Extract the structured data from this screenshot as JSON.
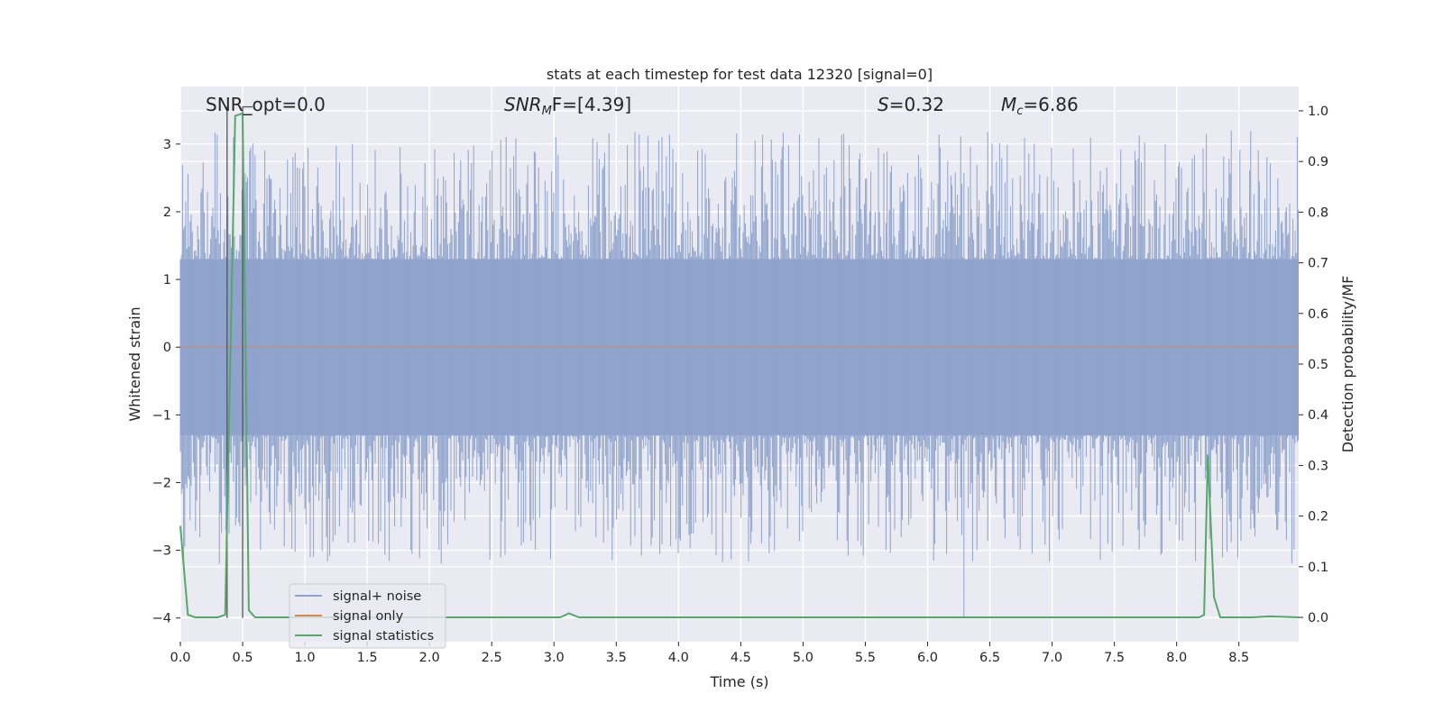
{
  "chart_data": {
    "type": "line",
    "title": "stats at each timestep for test data 12320 [signal=0]",
    "xlabel": "Time (s)",
    "ylabel": "Whitened strain",
    "y2label": "Detection probability/MF",
    "xlim": [
      0.0,
      8.98
    ],
    "ylim": [
      -4.35,
      3.85
    ],
    "y2lim": [
      -0.048,
      1.048
    ],
    "xticks": [
      0.0,
      0.5,
      1.0,
      1.5,
      2.0,
      2.5,
      3.0,
      3.5,
      4.0,
      4.5,
      5.0,
      5.5,
      6.0,
      6.5,
      7.0,
      7.5,
      8.0,
      8.5
    ],
    "xtick_labels": [
      "0.0",
      "0.5",
      "1.0",
      "1.5",
      "2.0",
      "2.5",
      "3.0",
      "3.5",
      "4.0",
      "4.5",
      "5.0",
      "5.5",
      "6.0",
      "6.5",
      "7.0",
      "7.5",
      "8.0",
      "8.5"
    ],
    "yticks": [
      -4,
      -3,
      -2,
      -1,
      0,
      1,
      2,
      3
    ],
    "ytick_labels": [
      "−4",
      "−3",
      "−2",
      "−1",
      "0",
      "1",
      "2",
      "3"
    ],
    "y2ticks": [
      0.0,
      0.1,
      0.2,
      0.3,
      0.4,
      0.5,
      0.6,
      0.7,
      0.8,
      0.9,
      1.0
    ],
    "y2tick_labels": [
      "0.0",
      "0.1",
      "0.2",
      "0.3",
      "0.4",
      "0.5",
      "0.6",
      "0.7",
      "0.8",
      "0.9",
      "1.0"
    ],
    "grid": true,
    "legend_position": "lower-left",
    "annotations": {
      "snr_opt": "SNR_opt=0.0",
      "snr_mf_sym": "SNR",
      "snr_mf_sub": "M",
      "snr_mf_rest": "F=[4.39]",
      "s_sym": "S",
      "s_rest": "=0.32",
      "mc_sym": "M",
      "mc_sub": "c",
      "mc_rest": "=6.86"
    },
    "vertical_markers": [
      {
        "x": 0.375,
        "y_from": -4.0,
        "y_to": 3.55
      },
      {
        "x": 0.5,
        "y_from": -4.0,
        "y_to": 3.55
      }
    ],
    "marker_cap": {
      "x_from": 0.5,
      "x_to": 0.58,
      "y": 3.55
    },
    "series": [
      {
        "name": "signal+ noise",
        "color": "#8fa3cc",
        "style": "noise",
        "description_values": {
          "core_amplitude": 1.3,
          "typical_peak": 2.3,
          "max_peak": 3.5,
          "min_trough": -4.0
        }
      },
      {
        "name": "signal only",
        "color": "#dd8452",
        "x": [
          0.0,
          8.98
        ],
        "y": [
          0.0,
          0.0
        ]
      },
      {
        "name": "signal statistics",
        "color": "#55a868",
        "axis": "right",
        "x": [
          0.0,
          0.06,
          0.12,
          0.3,
          0.36,
          0.44,
          0.5,
          0.55,
          0.6,
          0.65,
          3.05,
          3.12,
          3.2,
          8.18,
          8.22,
          8.25,
          8.3,
          8.35,
          8.6,
          8.75,
          8.98
        ],
        "y": [
          0.18,
          0.005,
          0.0,
          0.0,
          0.005,
          0.99,
          0.995,
          0.014,
          0.0,
          0.0,
          0.0,
          0.008,
          0.0,
          0.0,
          0.005,
          0.32,
          0.04,
          0.0,
          0.0,
          0.002,
          0.0
        ]
      }
    ]
  }
}
